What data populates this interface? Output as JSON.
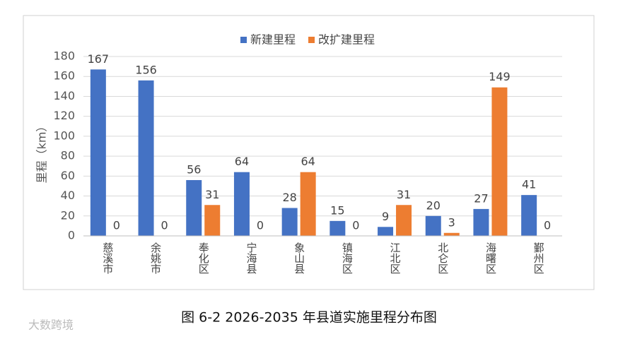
{
  "chart_data": {
    "type": "bar",
    "categories": [
      "慈溪市",
      "余姚市",
      "奉化区",
      "宁海县",
      "象山县",
      "镇海区",
      "江北区",
      "北仑区",
      "海曙区",
      "鄞州区"
    ],
    "series": [
      {
        "name": "新建里程",
        "color": "#4472c4",
        "values": [
          167,
          156,
          56,
          64,
          28,
          15,
          9,
          20,
          27,
          41
        ]
      },
      {
        "name": "改扩建里程",
        "color": "#ed7d31",
        "values": [
          0,
          0,
          31,
          0,
          64,
          0,
          31,
          3,
          149,
          0
        ]
      }
    ],
    "y_label": "里程（km）",
    "ylim": [
      0,
      180
    ],
    "yticks": [
      0,
      20,
      40,
      60,
      80,
      100,
      120,
      140,
      160,
      180
    ],
    "grid": true,
    "legend": "top"
  },
  "caption": "图 6-2    2026-2035 年县道实施里程分布图",
  "watermark": "大数跨境"
}
